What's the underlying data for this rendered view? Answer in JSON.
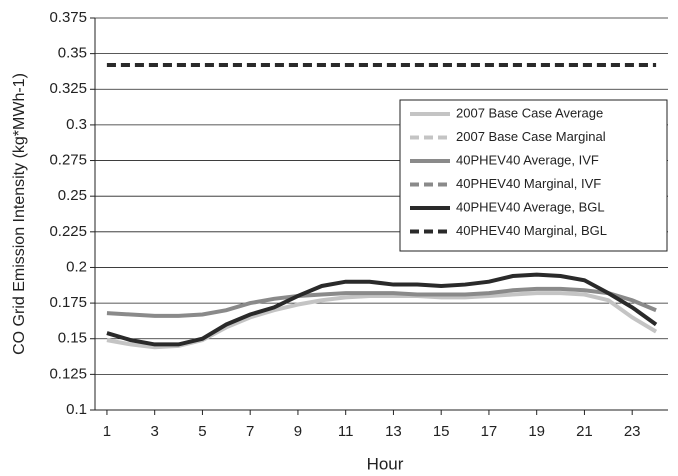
{
  "chart_data": {
    "type": "line",
    "x_label": "Hour",
    "y_label": "CO Grid Emission Intensity (kg*MWh-1)",
    "x": [
      1,
      2,
      3,
      4,
      5,
      6,
      7,
      8,
      9,
      10,
      11,
      12,
      13,
      14,
      15,
      16,
      17,
      18,
      19,
      20,
      21,
      22,
      23,
      24
    ],
    "xlim": [
      0.5,
      24.5
    ],
    "xticks": [
      1,
      3,
      5,
      7,
      9,
      11,
      13,
      15,
      17,
      19,
      21,
      23
    ],
    "ylim": [
      0.1,
      0.375
    ],
    "yticks": [
      0.1,
      0.125,
      0.15,
      0.175,
      0.2,
      0.225,
      0.25,
      0.275,
      0.3,
      0.325,
      0.35,
      0.375
    ],
    "grid": true,
    "legend": "upper-right",
    "series": [
      {
        "name": "2007 Base Case Average",
        "color": "#c4c4c4",
        "dashed": false,
        "values": [
          0.149,
          0.146,
          0.144,
          0.145,
          0.149,
          0.158,
          0.165,
          0.17,
          0.174,
          0.177,
          0.179,
          0.18,
          0.18,
          0.18,
          0.179,
          0.179,
          0.18,
          0.181,
          0.182,
          0.182,
          0.181,
          0.177,
          0.165,
          0.155
        ]
      },
      {
        "name": "2007 Base Case Marginal",
        "color": "#c4c4c4",
        "dashed": true,
        "values": [
          0.342,
          0.342,
          0.342,
          0.342,
          0.342,
          0.342,
          0.342,
          0.342,
          0.342,
          0.342,
          0.342,
          0.342,
          0.342,
          0.342,
          0.342,
          0.342,
          0.342,
          0.342,
          0.342,
          0.342,
          0.342,
          0.342,
          0.342,
          0.342
        ]
      },
      {
        "name": "40PHEV40 Average, IVF",
        "color": "#8a8a8a",
        "dashed": false,
        "values": [
          0.168,
          0.167,
          0.166,
          0.166,
          0.167,
          0.17,
          0.175,
          0.178,
          0.18,
          0.181,
          0.182,
          0.182,
          0.182,
          0.181,
          0.181,
          0.181,
          0.182,
          0.184,
          0.185,
          0.185,
          0.184,
          0.182,
          0.177,
          0.17
        ]
      },
      {
        "name": "40PHEV40 Marginal, IVF",
        "color": "#8a8a8a",
        "dashed": true,
        "values": [
          0.342,
          0.342,
          0.342,
          0.342,
          0.342,
          0.342,
          0.342,
          0.342,
          0.342,
          0.342,
          0.342,
          0.342,
          0.342,
          0.342,
          0.342,
          0.342,
          0.342,
          0.342,
          0.342,
          0.342,
          0.342,
          0.342,
          0.342,
          0.342
        ]
      },
      {
        "name": "40PHEV40 Average, BGL",
        "color": "#2a2a2a",
        "dashed": false,
        "values": [
          0.154,
          0.149,
          0.146,
          0.146,
          0.15,
          0.16,
          0.167,
          0.172,
          0.18,
          0.187,
          0.19,
          0.19,
          0.188,
          0.188,
          0.187,
          0.188,
          0.19,
          0.194,
          0.195,
          0.194,
          0.191,
          0.182,
          0.172,
          0.16
        ]
      },
      {
        "name": "40PHEV40 Marginal, BGL",
        "color": "#2a2a2a",
        "dashed": true,
        "values": [
          0.342,
          0.342,
          0.342,
          0.342,
          0.342,
          0.342,
          0.342,
          0.342,
          0.342,
          0.342,
          0.342,
          0.342,
          0.342,
          0.342,
          0.342,
          0.342,
          0.342,
          0.342,
          0.342,
          0.342,
          0.342,
          0.342,
          0.342,
          0.342
        ]
      }
    ]
  }
}
